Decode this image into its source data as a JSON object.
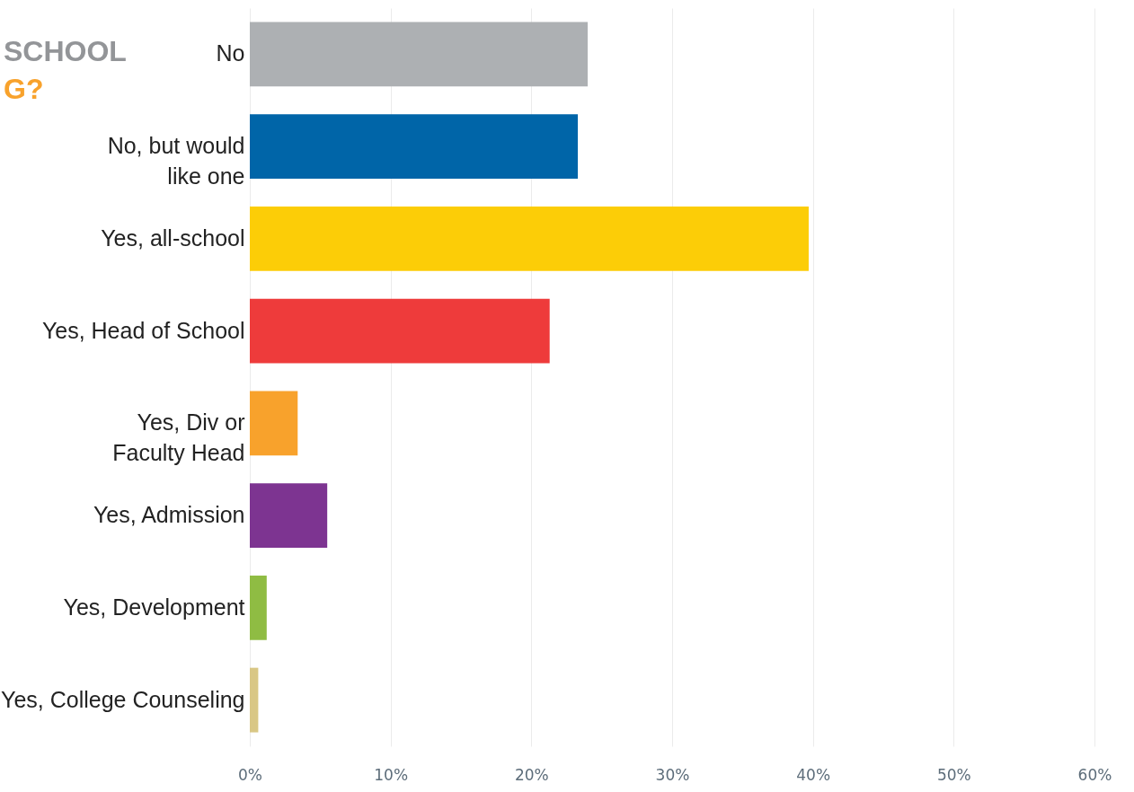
{
  "chart_data": {
    "type": "bar",
    "orientation": "horizontal",
    "annotations": [
      "SCHOOL",
      "G?"
    ],
    "categories": [
      "No",
      "No, but would\nlike one",
      "Yes, all-school",
      "Yes, Head of School",
      "Yes, Div or\nFaculty Head",
      "Yes, Admission",
      "Yes, Development",
      "Yes, College Counseling"
    ],
    "values": [
      24.0,
      23.3,
      39.7,
      21.3,
      3.4,
      5.5,
      1.2,
      0.6
    ],
    "colors": [
      "#adb0b3",
      "#0065a8",
      "#fccd07",
      "#ee3b3b",
      "#f8a22c",
      "#7d3491",
      "#8fbc43",
      "#d9c785"
    ],
    "xlim": [
      0,
      60
    ],
    "xticks": [
      {
        "value": 0,
        "label": "0%"
      },
      {
        "value": 10,
        "label": "10%"
      },
      {
        "value": 20,
        "label": "20%"
      },
      {
        "value": 30,
        "label": "30%"
      },
      {
        "value": 40,
        "label": "40%"
      },
      {
        "value": 50,
        "label": "50%"
      },
      {
        "value": 60,
        "label": "60%"
      }
    ],
    "grid": "x"
  }
}
